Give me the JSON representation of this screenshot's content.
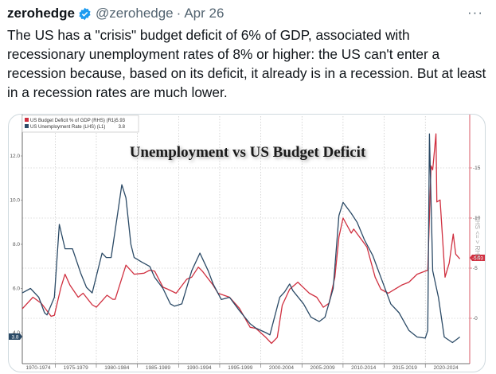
{
  "tweet": {
    "author_name": "zerohedge",
    "handle": "@zerohedge",
    "separator": "·",
    "date": "Apr 26",
    "more_label": "···",
    "text": "The US has a \"crisis\" budget deficit of 6% of GDP, associated with recessionary unemployment rates of 8% or higher: the US can't enter a recession because, based on its deficit, it already is in a recession. But at least in a recession rates are much lower."
  },
  "colors": {
    "unemployment": "#2b4a66",
    "deficit": "#d03040",
    "verified": "#1d9bf0"
  },
  "chart_data": {
    "type": "line",
    "title": "Unemployment vs US Budget Deficit",
    "legend_position": "top-left",
    "grid": true,
    "x_tick_labels": [
      "1970-1974",
      "1975-1979",
      "1980-1984",
      "1985-1989",
      "1990-1994",
      "1995-1999",
      "2000-2004",
      "2005-2009",
      "2010-2014",
      "2015-2019",
      "2020-2024"
    ],
    "xlim": [
      1971.0,
      2025.4
    ],
    "left_axis": {
      "ticks": [
        "12.0",
        "10.0",
        "8.0",
        "6.0",
        "4.0"
      ],
      "ylim": [
        2.6,
        13.8
      ],
      "last_value_label": "3.8"
    },
    "right_axis": {
      "ticks": [
        "15",
        "10",
        "5",
        "0"
      ],
      "ylim": [
        -4.5,
        20.2
      ],
      "last_value_label": "-5.93",
      "note": "LHS <= > RHS"
    },
    "series": [
      {
        "name": "US Budget Deficit % of GDP (RHS) (R1)",
        "last": "-5.93",
        "axis": "right",
        "points": [
          [
            1971.0,
            0.95
          ],
          [
            1972.3,
            2.1
          ],
          [
            1973.3,
            1.5
          ],
          [
            1973.5,
            1.3
          ],
          [
            1974.5,
            0.2
          ],
          [
            1974.9,
            0.3
          ],
          [
            1975.7,
            3.1
          ],
          [
            1976.2,
            4.4
          ],
          [
            1976.8,
            3.3
          ],
          [
            1977.8,
            2.1
          ],
          [
            1978.4,
            2.5
          ],
          [
            1979.5,
            1.35
          ],
          [
            1980.0,
            1.1
          ],
          [
            1981.3,
            2.3
          ],
          [
            1982.0,
            1.9
          ],
          [
            1982.3,
            1.9
          ],
          [
            1983.6,
            5.3
          ],
          [
            1984.6,
            4.4
          ],
          [
            1985.8,
            4.5
          ],
          [
            1986.5,
            4.8
          ],
          [
            1987.1,
            4.7
          ],
          [
            1988.1,
            3.1
          ],
          [
            1988.7,
            2.9
          ],
          [
            1989.7,
            2.5
          ],
          [
            1991.0,
            3.9
          ],
          [
            1991.6,
            4.1
          ],
          [
            1992.4,
            5.1
          ],
          [
            1992.9,
            4.7
          ],
          [
            1994.2,
            3.3
          ],
          [
            1994.8,
            2.5
          ],
          [
            1996.2,
            2.1
          ],
          [
            1997.4,
            1.0
          ],
          [
            1998.7,
            -0.9
          ],
          [
            1999.4,
            -1.0
          ],
          [
            2000.6,
            -1.9
          ],
          [
            2001.3,
            -2.5
          ],
          [
            2002.0,
            -1.9
          ],
          [
            2002.6,
            1.3
          ],
          [
            2003.5,
            2.9
          ],
          [
            2004.5,
            3.6
          ],
          [
            2005.9,
            2.5
          ],
          [
            2006.8,
            2.1
          ],
          [
            2007.6,
            1.1
          ],
          [
            2008.3,
            1.5
          ],
          [
            2009.0,
            4.1
          ],
          [
            2009.5,
            8.1
          ],
          [
            2010.0,
            10.0
          ],
          [
            2011.0,
            8.5
          ],
          [
            2011.3,
            8.9
          ],
          [
            2012.2,
            7.9
          ],
          [
            2012.9,
            7.1
          ],
          [
            2013.9,
            4.1
          ],
          [
            2014.6,
            2.9
          ],
          [
            2015.5,
            2.5
          ],
          [
            2016.1,
            2.8
          ],
          [
            2017.1,
            3.3
          ],
          [
            2018.0,
            3.6
          ],
          [
            2019.0,
            4.4
          ],
          [
            2020.3,
            4.8
          ],
          [
            2020.7,
            15.2
          ],
          [
            2020.9,
            14.8
          ],
          [
            2021.3,
            18.4
          ],
          [
            2021.4,
            11.6
          ],
          [
            2021.8,
            11.8
          ],
          [
            2022.4,
            4.1
          ],
          [
            2022.9,
            5.5
          ],
          [
            2023.4,
            8.4
          ],
          [
            2023.7,
            6.4
          ],
          [
            2024.2,
            5.93
          ]
        ]
      },
      {
        "name": "US Unemployment Rate (LHS) (L1)",
        "last": "3.8",
        "axis": "left",
        "points": [
          [
            1971.0,
            5.8
          ],
          [
            1972.0,
            6.0
          ],
          [
            1973.0,
            5.6
          ],
          [
            1973.7,
            4.9
          ],
          [
            1974.0,
            4.8
          ],
          [
            1974.9,
            5.6
          ],
          [
            1975.5,
            8.9
          ],
          [
            1976.2,
            7.8
          ],
          [
            1977.1,
            7.8
          ],
          [
            1978.1,
            6.7
          ],
          [
            1978.8,
            6.05
          ],
          [
            1979.5,
            5.8
          ],
          [
            1980.7,
            7.6
          ],
          [
            1981.2,
            7.4
          ],
          [
            1981.8,
            7.4
          ],
          [
            1982.6,
            9.4
          ],
          [
            1983.1,
            10.7
          ],
          [
            1983.6,
            10.1
          ],
          [
            1984.2,
            8.0
          ],
          [
            1984.6,
            7.4
          ],
          [
            1985.5,
            7.2
          ],
          [
            1986.5,
            7.0
          ],
          [
            1987.1,
            6.5
          ],
          [
            1988.1,
            6.0
          ],
          [
            1989.0,
            5.3
          ],
          [
            1989.5,
            5.2
          ],
          [
            1990.4,
            5.3
          ],
          [
            1991.6,
            6.8
          ],
          [
            1992.6,
            7.6
          ],
          [
            1993.6,
            6.8
          ],
          [
            1994.2,
            6.2
          ],
          [
            1995.2,
            5.5
          ],
          [
            1996.2,
            5.6
          ],
          [
            1997.4,
            5.0
          ],
          [
            1998.7,
            4.4
          ],
          [
            1999.4,
            4.2
          ],
          [
            2000.6,
            4.0
          ],
          [
            2001.1,
            3.9
          ],
          [
            2002.3,
            5.6
          ],
          [
            2002.9,
            5.85
          ],
          [
            2003.5,
            6.2
          ],
          [
            2003.9,
            5.9
          ],
          [
            2005.2,
            5.3
          ],
          [
            2006.1,
            4.7
          ],
          [
            2007.1,
            4.5
          ],
          [
            2007.8,
            4.7
          ],
          [
            2008.8,
            6.0
          ],
          [
            2009.5,
            9.3
          ],
          [
            2010.0,
            9.9
          ],
          [
            2011.0,
            9.4
          ],
          [
            2011.7,
            9.0
          ],
          [
            2012.6,
            8.2
          ],
          [
            2013.6,
            7.5
          ],
          [
            2014.8,
            6.3
          ],
          [
            2015.8,
            5.3
          ],
          [
            2016.8,
            4.9
          ],
          [
            2018.0,
            4.1
          ],
          [
            2019.0,
            3.8
          ],
          [
            2020.0,
            3.75
          ],
          [
            2020.3,
            4.1
          ],
          [
            2020.5,
            13.0
          ],
          [
            2020.9,
            6.8
          ],
          [
            2021.6,
            5.6
          ],
          [
            2022.3,
            3.8
          ],
          [
            2023.3,
            3.55
          ],
          [
            2024.2,
            3.8
          ]
        ]
      }
    ]
  }
}
